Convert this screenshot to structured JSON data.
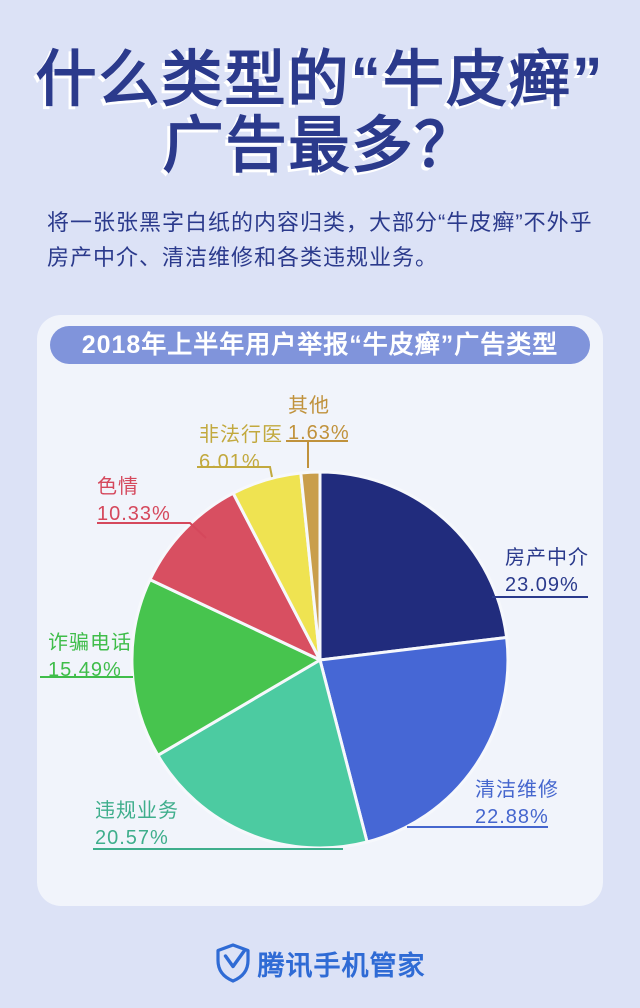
{
  "page": {
    "background_color": "#DCE2F6",
    "title_color": "#2B3A8C",
    "title_line1": "什么类型的“牛皮癣”",
    "title_line2": "广告最多？",
    "intro_text": "将一张张黑字白纸的内容归类，大部分“牛皮癣”不外乎房产中介、清洁维修和各类违规业务。",
    "intro_color": "#2B3A8C"
  },
  "card": {
    "card_bg": "#F1F4FB",
    "banner_title": "2018年上半年用户举报“牛皮癣”广告类型",
    "banner_bg": "#8094DB",
    "banner_text_color": "#FFFFFF"
  },
  "chart_data": {
    "type": "pie",
    "title": "2018年上半年用户举报“牛皮癣”广告类型",
    "unit": "%",
    "start_angle_deg": 0,
    "direction": "clockwise",
    "separator_color": "#F6F8FC",
    "slices": [
      {
        "label": "房产中介",
        "value": 23.09,
        "color": "#212C7D",
        "label_color": "#2A3A8C"
      },
      {
        "label": "清洁维修",
        "value": 22.88,
        "color": "#4667D5",
        "label_color": "#4566CE"
      },
      {
        "label": "违规业务",
        "value": 20.57,
        "color": "#4CCBA1",
        "label_color": "#3FAE8C"
      },
      {
        "label": "诈骗电话",
        "value": 15.49,
        "color": "#47C44E",
        "label_color": "#3FBD4A"
      },
      {
        "label": "色情",
        "value": 10.33,
        "color": "#D84F61",
        "label_color": "#D5485C"
      },
      {
        "label": "非法行医",
        "value": 6.01,
        "color": "#EFE351",
        "label_color": "#C2A93E"
      },
      {
        "label": "其他",
        "value": 1.63,
        "color": "#C99E4B",
        "label_color": "#C0923C"
      }
    ]
  },
  "footer": {
    "brand": "腾讯手机管家",
    "brand_color": "#2F6BD5"
  }
}
